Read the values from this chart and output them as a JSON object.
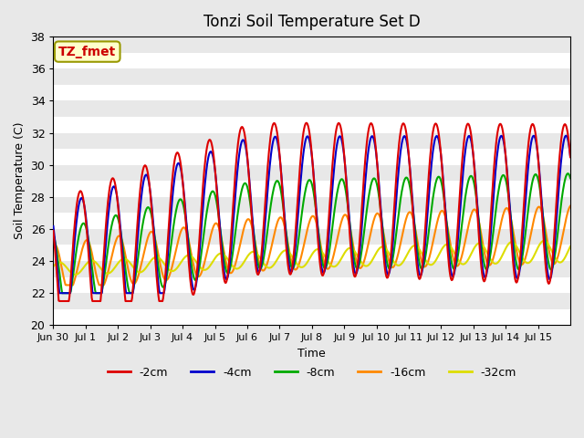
{
  "title": "Tonzi Soil Temperature Set D",
  "xlabel": "Time",
  "ylabel": "Soil Temperature (C)",
  "ylim": [
    20,
    38
  ],
  "n_days": 16,
  "annotation": "TZ_fmet",
  "annotation_color": "#cc0000",
  "annotation_bg": "#ffffcc",
  "annotation_border": "#999900",
  "colors": {
    "-2cm": "#dd0000",
    "-4cm": "#0000cc",
    "-8cm": "#00aa00",
    "-16cm": "#ff8800",
    "-32cm": "#dddd00"
  },
  "legend_labels": [
    "-2cm",
    "-4cm",
    "-8cm",
    "-16cm",
    "-32cm"
  ],
  "xtick_labels": [
    "Jun 30",
    "Jul 1",
    "Jul 2",
    "Jul 3",
    "Jul 4",
    "Jul 5",
    "Jul 6",
    "Jul 7",
    "Jul 8",
    "Jul 9",
    "Jul 10",
    "Jul 11",
    "Jul 12",
    "Jul 13",
    "Jul 14",
    "Jul 15"
  ],
  "bg_color": "#e8e8e8",
  "plot_bg": "#e8e8e8",
  "grid_color": "#ffffff",
  "linewidth": 1.5
}
